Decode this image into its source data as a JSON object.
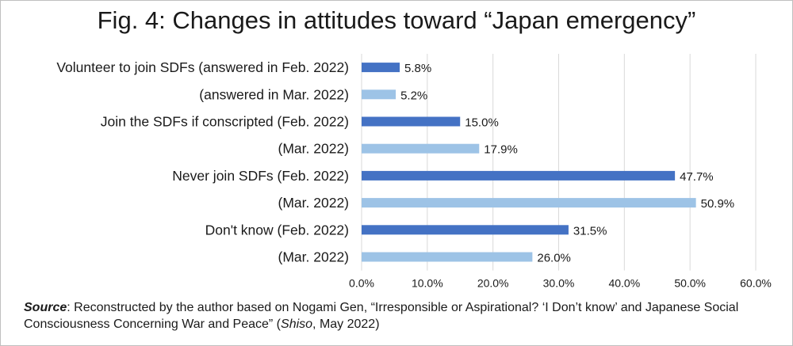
{
  "title": "Fig. 4: Changes in attitudes toward “Japan emergency”",
  "source": {
    "label": "Source",
    "colon": ":",
    "text_before": " Reconstructed by the author based on Nogami Gen, “Irresponsible or Aspirational? ‘I Don’t know’ and Japanese Social Consciousness Concerning War and Peace” (",
    "journal": "Shiso",
    "text_after": ", May 2022)"
  },
  "colors": {
    "feb": "#4472c4",
    "mar": "#9dc3e6",
    "grid": "#d9d9d9",
    "text": "#1a1a1a"
  },
  "chart_data": {
    "type": "bar",
    "orientation": "horizontal",
    "categories": [
      "Volunteer to join SDFs (answered in Feb. 2022)",
      "(answered in Mar. 2022)",
      "Join the SDFs if conscripted (Feb. 2022)",
      "(Mar. 2022)",
      "Never join SDFs (Feb. 2022)",
      "(Mar. 2022)",
      "Don't know (Feb. 2022)",
      "(Mar. 2022)"
    ],
    "values": [
      5.8,
      5.2,
      15.0,
      17.9,
      47.7,
      50.9,
      31.5,
      26.0
    ],
    "value_labels": [
      "5.8%",
      "5.2%",
      "15.0%",
      "17.9%",
      "47.7%",
      "50.9%",
      "31.5%",
      "26.0%"
    ],
    "bar_color_keys": [
      "feb",
      "mar",
      "feb",
      "mar",
      "feb",
      "mar",
      "feb",
      "mar"
    ],
    "xlim": [
      0,
      60
    ],
    "xticks": [
      0,
      10,
      20,
      30,
      40,
      50,
      60
    ],
    "xtick_labels": [
      "0.0%",
      "10.0%",
      "20.0%",
      "30.0%",
      "40.0%",
      "50.0%",
      "60.0%"
    ],
    "grid": true,
    "legend": false
  }
}
